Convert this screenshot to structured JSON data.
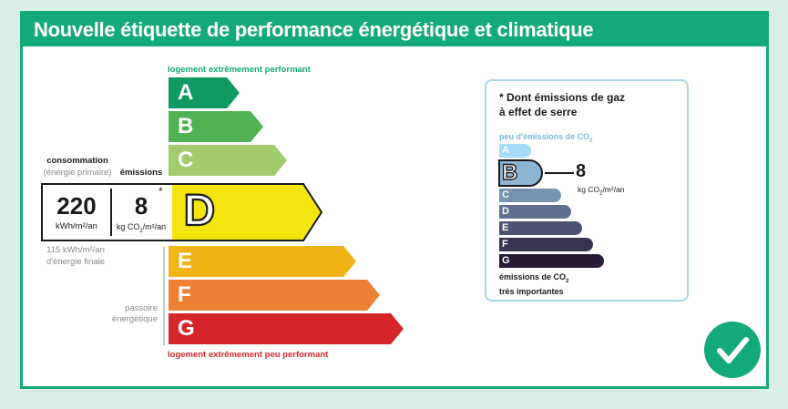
{
  "header": {
    "title": "Nouvelle étiquette de performance énergétique et climatique"
  },
  "dpe": {
    "top_label": "logement extrêmement performant",
    "bottom_label": "logement extrêmement peu performant",
    "classes": [
      {
        "letter": "A",
        "color": "#0f9a62"
      },
      {
        "letter": "B",
        "color": "#50b252"
      },
      {
        "letter": "C",
        "color": "#a2cb6e"
      },
      {
        "letter": "D",
        "color": "#f4e511"
      },
      {
        "letter": "E",
        "color": "#f0b416"
      },
      {
        "letter": "F",
        "color": "#ec8136"
      },
      {
        "letter": "G",
        "color": "#d7262b"
      }
    ],
    "current_class": "D",
    "consumption_label": "consommation",
    "consumption_sublabel": "(énergie primaire)",
    "emissions_label": "émissions",
    "consumption_value": "220",
    "consumption_unit": "kWh/m²/an",
    "emissions_value": "8",
    "emissions_unit_pre": "kg CO",
    "emissions_unit_sub": "2",
    "emissions_unit_post": "/m²/an",
    "asterisk": "*",
    "final_energy_line1": "115 kWh/m²/an",
    "final_energy_line2": "d'énergie finale",
    "passoire_line1": "passoire",
    "passoire_line2": "énergétique"
  },
  "ges": {
    "title_line1": "* Dont émissions de gaz",
    "title_line2": "à effet de serre",
    "top_label_pre": "peu d'émissions de CO",
    "top_label_sub": "2",
    "classes": [
      {
        "letter": "A",
        "color": "#a4dbf8"
      },
      {
        "letter": "B",
        "color": "#8cb4d3"
      },
      {
        "letter": "C",
        "color": "#7792b1"
      },
      {
        "letter": "D",
        "color": "#606f8f"
      },
      {
        "letter": "E",
        "color": "#4d5271"
      },
      {
        "letter": "F",
        "color": "#393551"
      },
      {
        "letter": "G",
        "color": "#281b35"
      }
    ],
    "current_class": "B",
    "value": "8",
    "unit_pre": "kg CO",
    "unit_sub": "2",
    "unit_post": "/m²/an",
    "bottom_label_line1_pre": "émissions de CO",
    "bottom_label_line1_sub": "2",
    "bottom_label_line2": "très importantes"
  },
  "badge": {
    "icon": "check-icon",
    "color": "#14a97a"
  }
}
